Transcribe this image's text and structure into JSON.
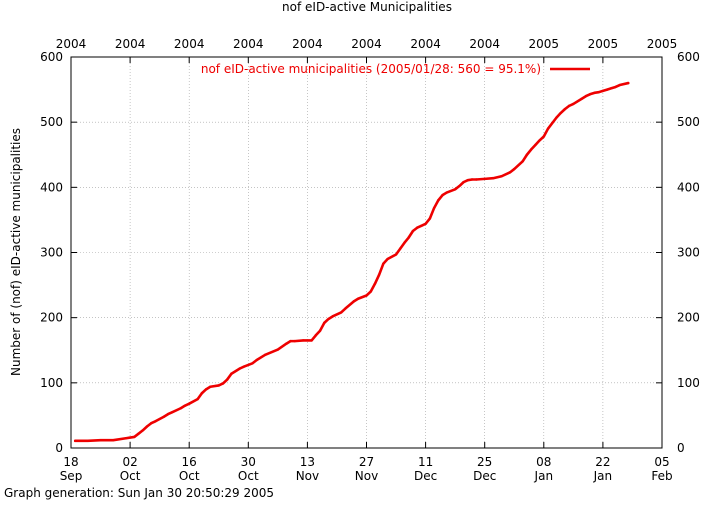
{
  "chart_data": {
    "type": "line",
    "title": "nof eID-active Municipalities",
    "ylabel": "Number of (nof) eID-active municipalities",
    "xlabel": "",
    "ylim": [
      0,
      600
    ],
    "xlim": [
      "2004-09-18",
      "2005-02-05"
    ],
    "grid": true,
    "legend_position": "top-right",
    "y_ticks": [
      0,
      100,
      200,
      300,
      400,
      500,
      600
    ],
    "x_ticks": [
      {
        "date": "2004-09-18",
        "day": "18",
        "month": "Sep",
        "year": "2004"
      },
      {
        "date": "2004-10-02",
        "day": "02",
        "month": "Oct",
        "year": "2004"
      },
      {
        "date": "2004-10-16",
        "day": "16",
        "month": "Oct",
        "year": "2004"
      },
      {
        "date": "2004-10-30",
        "day": "30",
        "month": "Oct",
        "year": "2004"
      },
      {
        "date": "2004-11-13",
        "day": "13",
        "month": "Nov",
        "year": "2004"
      },
      {
        "date": "2004-11-27",
        "day": "27",
        "month": "Nov",
        "year": "2004"
      },
      {
        "date": "2004-12-11",
        "day": "11",
        "month": "Dec",
        "year": "2004"
      },
      {
        "date": "2004-12-25",
        "day": "25",
        "month": "Dec",
        "year": "2004"
      },
      {
        "date": "2005-01-08",
        "day": "08",
        "month": "Jan",
        "year": "2005"
      },
      {
        "date": "2005-01-22",
        "day": "22",
        "month": "Jan",
        "year": "2005"
      },
      {
        "date": "2005-02-05",
        "day": "05",
        "month": "Feb",
        "year": "2005"
      }
    ],
    "series": [
      {
        "name": "nof eID-active municipalities (2005/01/28: 560 = 95.1%)",
        "color": "#ee0000",
        "x": [
          "2004-09-19",
          "2004-09-22",
          "2004-09-25",
          "2004-09-28",
          "2004-10-01",
          "2004-10-03",
          "2004-10-04",
          "2004-10-05",
          "2004-10-06",
          "2004-10-07",
          "2004-10-08",
          "2004-10-10",
          "2004-10-11",
          "2004-10-12",
          "2004-10-14",
          "2004-10-15",
          "2004-10-16",
          "2004-10-18",
          "2004-10-19",
          "2004-10-20",
          "2004-10-21",
          "2004-10-23",
          "2004-10-24",
          "2004-10-25",
          "2004-10-26",
          "2004-10-28",
          "2004-10-29",
          "2004-10-31",
          "2004-11-01",
          "2004-11-03",
          "2004-11-06",
          "2004-11-08",
          "2004-11-09",
          "2004-11-10",
          "2004-11-12",
          "2004-11-14",
          "2004-11-15",
          "2004-11-16",
          "2004-11-17",
          "2004-11-18",
          "2004-11-19",
          "2004-11-21",
          "2004-11-22",
          "2004-11-24",
          "2004-11-25",
          "2004-11-27",
          "2004-11-28",
          "2004-11-29",
          "2004-11-30",
          "2004-12-01",
          "2004-12-02",
          "2004-12-04",
          "2004-12-05",
          "2004-12-06",
          "2004-12-07",
          "2004-12-08",
          "2004-12-09",
          "2004-12-10",
          "2004-12-11",
          "2004-12-12",
          "2004-12-13",
          "2004-12-14",
          "2004-12-15",
          "2004-12-16",
          "2004-12-18",
          "2004-12-19",
          "2004-12-20",
          "2004-12-21",
          "2004-12-22",
          "2004-12-23",
          "2004-12-25",
          "2004-12-27",
          "2004-12-29",
          "2004-12-31",
          "2005-01-01",
          "2005-01-03",
          "2005-01-04",
          "2005-01-05",
          "2005-01-06",
          "2005-01-07",
          "2005-01-08",
          "2005-01-09",
          "2005-01-11",
          "2005-01-12",
          "2005-01-13",
          "2005-01-14",
          "2005-01-15",
          "2005-01-17",
          "2005-01-18",
          "2005-01-19",
          "2005-01-20",
          "2005-01-21",
          "2005-01-22",
          "2005-01-23",
          "2005-01-24",
          "2005-01-25",
          "2005-01-26",
          "2005-01-28"
        ],
        "values": [
          11,
          11,
          12,
          12,
          15,
          17,
          22,
          27,
          33,
          38,
          41,
          48,
          52,
          55,
          61,
          65,
          68,
          75,
          84,
          90,
          94,
          96,
          99,
          105,
          114,
          122,
          125,
          130,
          135,
          143,
          151,
          160,
          164,
          164,
          165,
          165,
          173,
          180,
          192,
          198,
          202,
          208,
          214,
          225,
          229,
          234,
          240,
          252,
          266,
          283,
          290,
          297,
          306,
          315,
          323,
          333,
          338,
          341,
          344,
          352,
          368,
          380,
          388,
          392,
          397,
          402,
          408,
          411,
          412,
          412,
          413,
          414,
          417,
          423,
          428,
          440,
          450,
          458,
          465,
          472,
          478,
          490,
          507,
          514,
          520,
          525,
          528,
          536,
          540,
          543,
          545,
          546,
          548,
          550,
          552,
          554,
          557,
          560
        ]
      }
    ]
  },
  "top_axis": {
    "labels": [
      "2004",
      "2004",
      "2004",
      "2004",
      "2004",
      "2004",
      "2004",
      "2004",
      "2005",
      "2005",
      "2005"
    ]
  },
  "footer": {
    "text": "Graph generation: Sun Jan 30 20:50:29 2005"
  }
}
